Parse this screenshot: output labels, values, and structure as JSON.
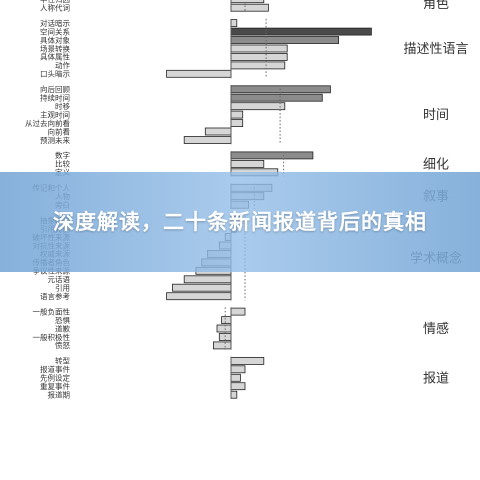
{
  "chart_data": {
    "type": "bar",
    "orientation": "horizontal",
    "title": "",
    "xlabel": "",
    "ylabel": "",
    "xlim": [
      -0.7,
      1.4
    ],
    "grid": false,
    "legend": "none",
    "colors": {
      "bar_light": "#d6d6d6",
      "bar_mid": "#8c8c8c",
      "bar_dark": "#4a4a4a",
      "edge": "#222222",
      "axis": "#555555"
    },
    "groups": [
      {
        "name": "角色",
        "mean": 0.12,
        "items": [
          {
            "label": "中性归因",
            "value": 0.28,
            "shade": "light"
          },
          {
            "label": "人称代词",
            "value": 0.32,
            "shade": "light"
          }
        ]
      },
      {
        "name": "描述性语言",
        "mean": 0.3,
        "items": [
          {
            "label": "对话暗示",
            "value": 0.05,
            "shade": "light"
          },
          {
            "label": "空间关系",
            "value": 1.2,
            "shade": "dark"
          },
          {
            "label": "具体对象",
            "value": 0.92,
            "shade": "mid"
          },
          {
            "label": "场景转换",
            "value": 0.48,
            "shade": "light"
          },
          {
            "label": "具体属性",
            "value": 0.48,
            "shade": "light"
          },
          {
            "label": "动作",
            "value": 0.46,
            "shade": "light"
          },
          {
            "label": "口头暗示",
            "value": -0.55,
            "shade": "light"
          }
        ]
      },
      {
        "name": "时间",
        "mean": 0.42,
        "items": [
          {
            "label": "向后回顾",
            "value": 0.85,
            "shade": "mid"
          },
          {
            "label": "持续时间",
            "value": 0.78,
            "shade": "mid"
          },
          {
            "label": "时移",
            "value": 0.46,
            "shade": "light"
          },
          {
            "label": "主观时间",
            "value": 0.1,
            "shade": "light"
          },
          {
            "label": "从过去向前看",
            "value": 0.1,
            "shade": "light"
          },
          {
            "label": "向前看",
            "value": -0.22,
            "shade": "light"
          },
          {
            "label": "预测未来",
            "value": -0.4,
            "shade": "light"
          }
        ]
      },
      {
        "name": "细化",
        "mean": 0.45,
        "items": [
          {
            "label": "数字",
            "value": 0.7,
            "shade": "mid"
          },
          {
            "label": "比较",
            "value": 0.28,
            "shade": "light"
          },
          {
            "label": "定义",
            "value": 0.4,
            "shade": "light"
          }
        ]
      },
      {
        "name": "叙事",
        "mean": 0.2,
        "items": [
          {
            "label": "传记和个人",
            "value": 0.35,
            "shade": "light"
          },
          {
            "label": "人物",
            "value": 0.28,
            "shade": "light"
          },
          {
            "label": "旁白",
            "value": 0.15,
            "shade": "light"
          }
        ]
      },
      {
        "name": "学术概念",
        "mean": 0.12,
        "items": [
          {
            "label": "抽象概念",
            "value": 0.1,
            "shade": "light"
          },
          {
            "label": "引用先例",
            "value": 0.05,
            "shade": "light"
          },
          {
            "label": "破坏性来源",
            "value": -0.05,
            "shade": "light"
          },
          {
            "label": "对抗性来源",
            "value": -0.1,
            "shade": "light"
          },
          {
            "label": "权威来源",
            "value": -0.2,
            "shade": "light"
          },
          {
            "label": "传播者角色",
            "value": -0.25,
            "shade": "light"
          },
          {
            "label": "争议性来源",
            "value": -0.3,
            "shade": "light"
          },
          {
            "label": "元话语",
            "value": -0.4,
            "shade": "light"
          },
          {
            "label": "引用",
            "value": -0.5,
            "shade": "light"
          },
          {
            "label": "语言参考",
            "value": -0.55,
            "shade": "light"
          }
        ]
      },
      {
        "name": "情感",
        "mean": -0.05,
        "items": [
          {
            "label": "一般负面性",
            "value": 0.12,
            "shade": "light"
          },
          {
            "label": "恐惧",
            "value": -0.08,
            "shade": "light"
          },
          {
            "label": "道歉",
            "value": -0.12,
            "shade": "light"
          },
          {
            "label": "一般积极性",
            "value": -0.1,
            "shade": "light"
          },
          {
            "label": "愤怒",
            "value": -0.15,
            "shade": "light"
          }
        ]
      },
      {
        "name": "报道",
        "mean": 0.0,
        "items": [
          {
            "label": "转型",
            "value": 0.28,
            "shade": "light"
          },
          {
            "label": "报道事件",
            "value": 0.12,
            "shade": "light"
          },
          {
            "label": "先例设定",
            "value": 0.08,
            "shade": "light"
          },
          {
            "label": "重复事件",
            "value": 0.12,
            "shade": "light"
          },
          {
            "label": "报道期",
            "value": 0.05,
            "shade": "light"
          }
        ]
      }
    ]
  },
  "banner": {
    "title": "深度解读，二十条新闻报道背后的真相"
  }
}
